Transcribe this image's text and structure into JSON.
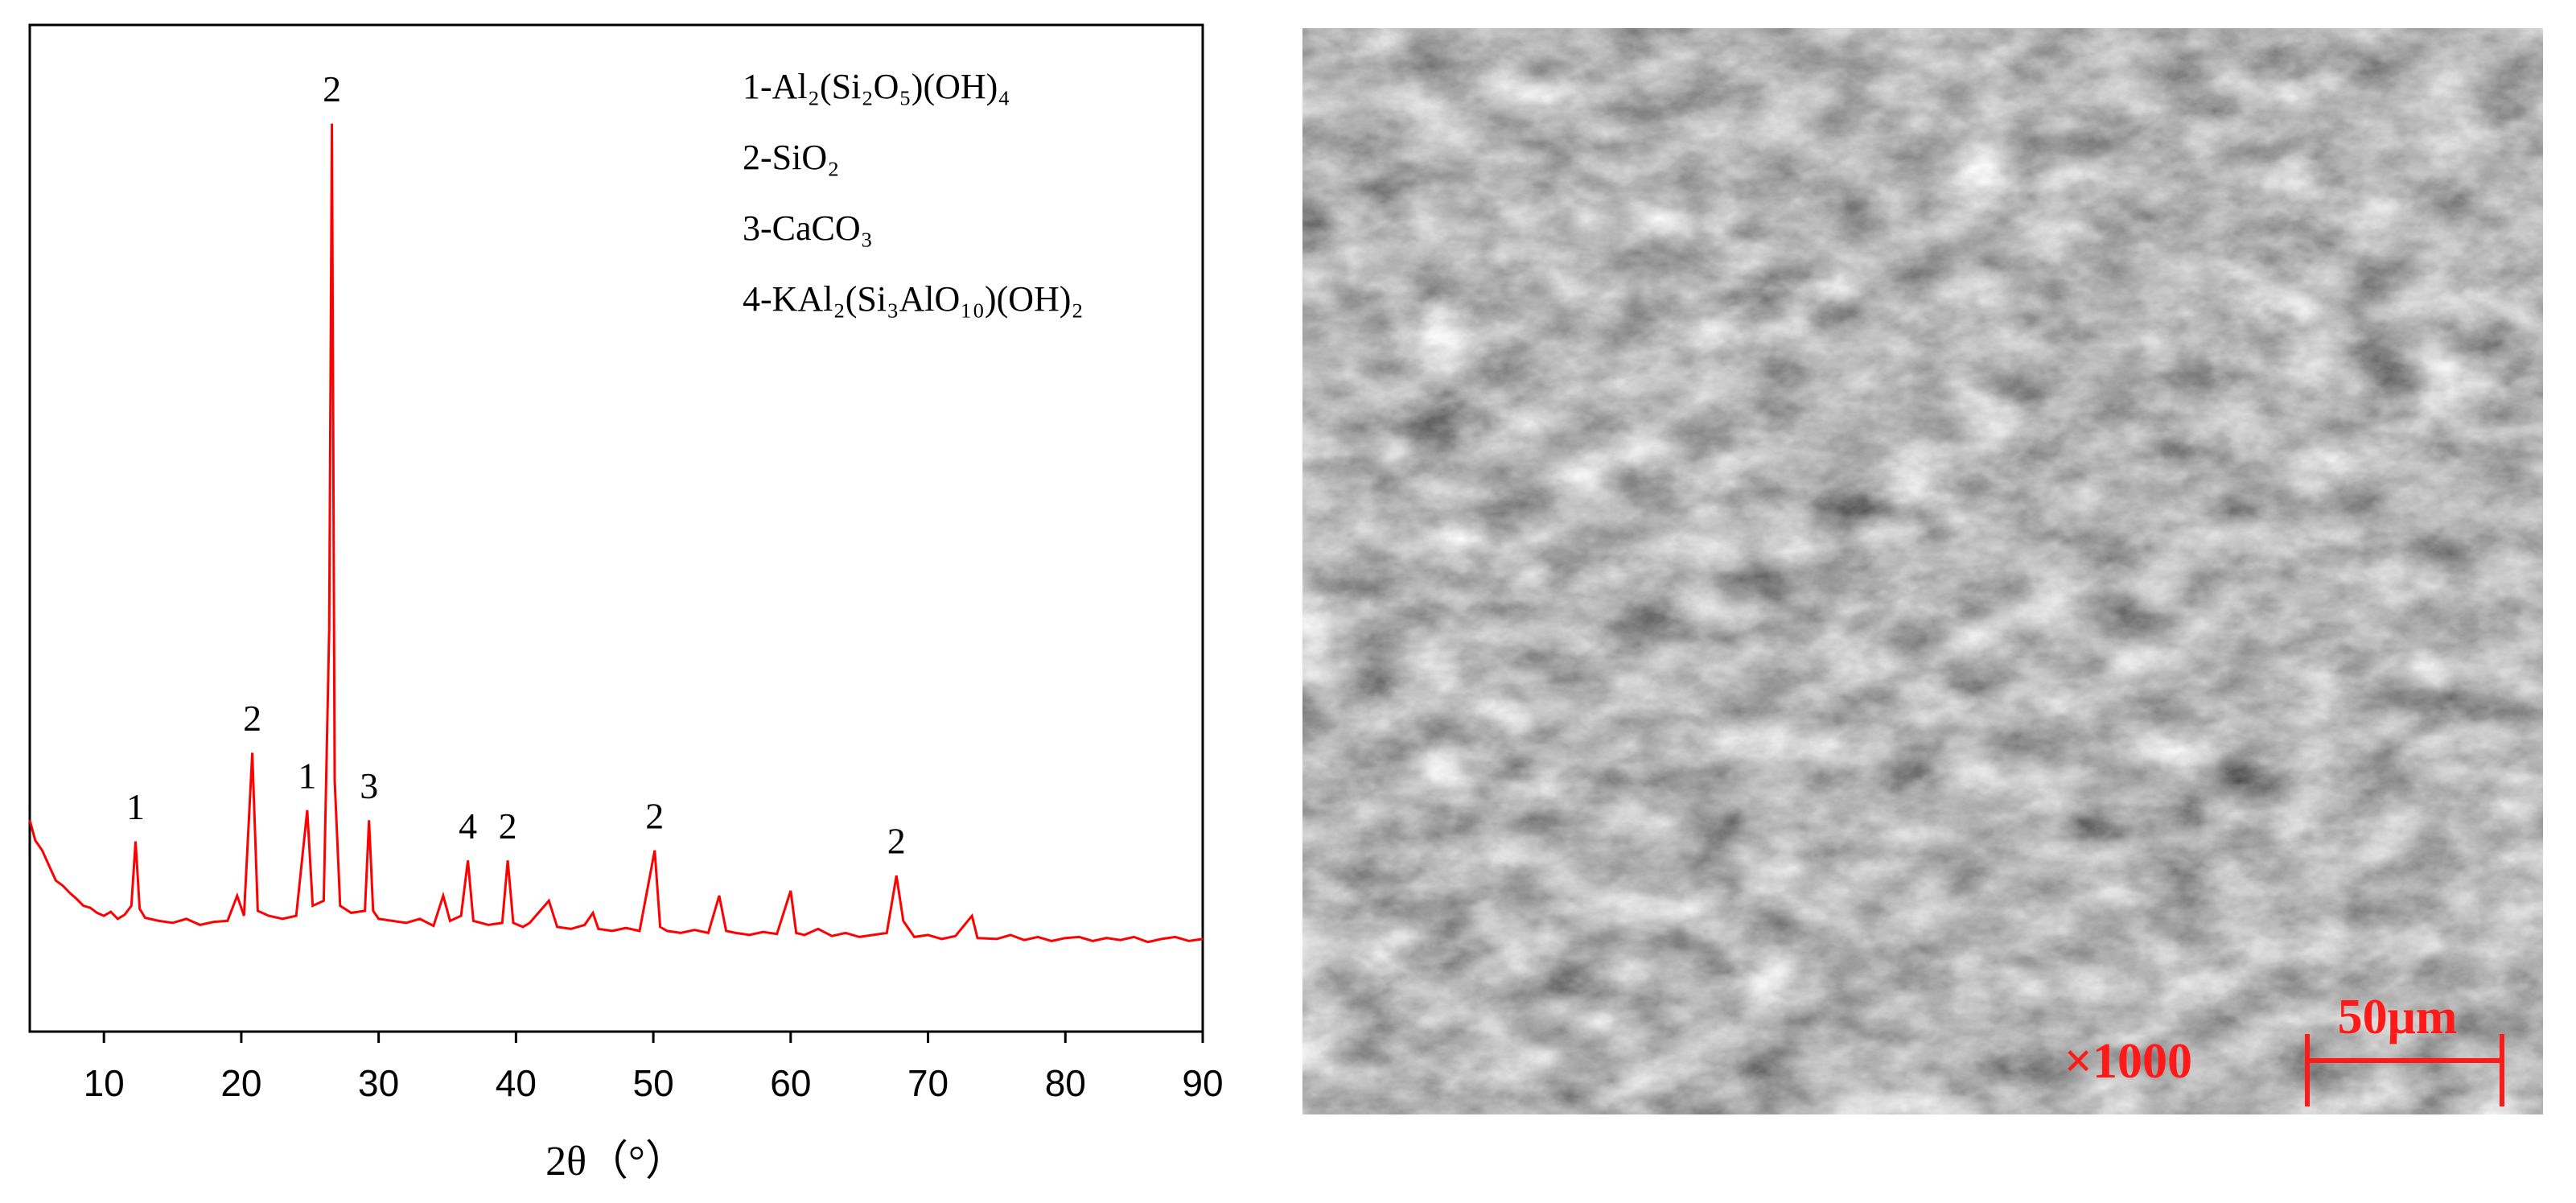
{
  "chart_data": {
    "type": "line",
    "xlabel": "2θ（°）",
    "color": "#ff0000",
    "xlim": [
      4.6,
      90
    ],
    "ylim": [
      0,
      100
    ],
    "xticks": [
      10,
      20,
      30,
      40,
      50,
      60,
      70,
      80,
      90
    ],
    "legend": [
      "1-Al₂(Si₂O₅)(OH)₄",
      "2-SiO₂",
      "3-CaCO₃",
      "4-KAl₂(Si₃AlO₁₀)(OH)₂"
    ],
    "annotations": [
      {
        "text": "1",
        "x": 12.3
      },
      {
        "text": "2",
        "x": 20.8
      },
      {
        "text": "1",
        "x": 24.8
      },
      {
        "text": "2",
        "x": 26.6
      },
      {
        "text": "3",
        "x": 29.3
      },
      {
        "text": "4",
        "x": 36.5
      },
      {
        "text": "2",
        "x": 39.4
      },
      {
        "text": "2",
        "x": 50.1
      },
      {
        "text": "2",
        "x": 67.7
      }
    ],
    "x": [
      4.6,
      5,
      5.5,
      6,
      6.5,
      7,
      7.5,
      8,
      8.5,
      9,
      9.5,
      10,
      10.5,
      11,
      11.5,
      12,
      12.3,
      12.6,
      13,
      14,
      15,
      16,
      17,
      18,
      19,
      19.7,
      20.2,
      20.8,
      21.2,
      22,
      23,
      24,
      24.8,
      25.2,
      26,
      26.4,
      26.6,
      26.8,
      27.2,
      28,
      29,
      29.3,
      29.6,
      30,
      31,
      32,
      33,
      34,
      34.7,
      35.2,
      36,
      36.5,
      36.9,
      38,
      39,
      39.4,
      39.8,
      40.5,
      41,
      42.4,
      43,
      44,
      45,
      45.6,
      46,
      47,
      48,
      49,
      50.1,
      50.5,
      51,
      52,
      53,
      54,
      54.8,
      55.3,
      56,
      57,
      58,
      59,
      60,
      60.4,
      61,
      62,
      63,
      64,
      65,
      66,
      67,
      67.7,
      68.2,
      69,
      70,
      71,
      72,
      73.2,
      73.6,
      75,
      76,
      77,
      78,
      79,
      80,
      81,
      82,
      83,
      84,
      85,
      86,
      87,
      88,
      89,
      90
    ],
    "values": [
      21,
      19,
      18,
      16.5,
      15,
      14.5,
      13.8,
      13.2,
      12.5,
      12.3,
      11.8,
      11.5,
      11.9,
      11.2,
      11.6,
      12.5,
      18.9,
      12.2,
      11.3,
      11,
      10.8,
      11.2,
      10.6,
      10.9,
      11,
      13.5,
      11.5,
      27.7,
      12,
      11.5,
      11.2,
      11.5,
      22,
      12.5,
      13,
      40,
      90.2,
      25,
      12.5,
      11.8,
      12,
      21,
      12,
      11.2,
      11,
      10.8,
      11.2,
      10.5,
      13.5,
      11,
      11.5,
      17,
      11,
      10.6,
      10.8,
      17,
      10.8,
      10.4,
      10.8,
      13,
      10.4,
      10.2,
      10.6,
      11.8,
      10.2,
      10,
      10.3,
      10,
      18,
      10.4,
      10,
      9.8,
      10.1,
      9.8,
      13.5,
      10,
      9.8,
      9.6,
      9.9,
      9.7,
      14,
      9.8,
      9.6,
      10.2,
      9.5,
      9.8,
      9.4,
      9.6,
      9.8,
      15.5,
      11,
      9.4,
      9.6,
      9.2,
      9.5,
      11.5,
      9.3,
      9.2,
      9.6,
      9.1,
      9.4,
      9,
      9.3,
      9.4,
      9,
      9.3,
      9.1,
      9.4,
      8.9,
      9.2,
      9.4,
      9,
      9.2
    ]
  },
  "sem_image": {
    "magnification": "×1000",
    "scale_bar": "50μm"
  }
}
